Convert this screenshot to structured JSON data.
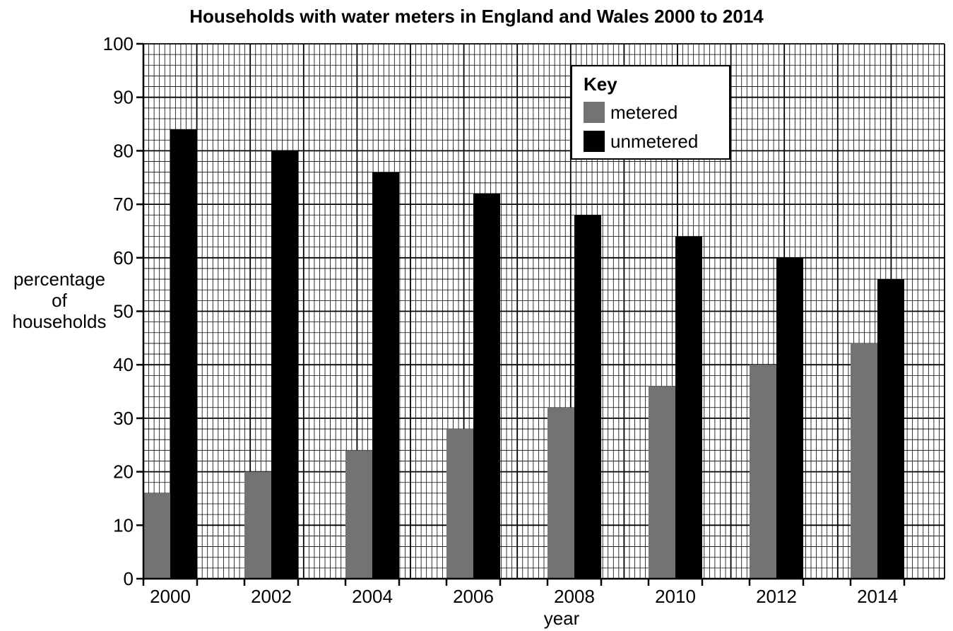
{
  "chart_data": {
    "type": "bar",
    "title": "Households with water meters in England and Wales 2000 to 2014",
    "xlabel": "year",
    "ylabel_lines": [
      "percentage",
      "of",
      "households"
    ],
    "ylim": [
      0,
      100
    ],
    "yticks": [
      "0",
      "10",
      "20",
      "30",
      "40",
      "50",
      "60",
      "70",
      "80",
      "90",
      "100"
    ],
    "categories": [
      "2000",
      "2002",
      "2004",
      "2006",
      "2008",
      "2010",
      "2012",
      "2014"
    ],
    "series": [
      {
        "name": "metered",
        "color": "#737373",
        "values": [
          16,
          20,
          24,
          28,
          32,
          36,
          40,
          44
        ]
      },
      {
        "name": "unmetered",
        "color": "#000000",
        "values": [
          84,
          80,
          76,
          72,
          68,
          64,
          60,
          56
        ]
      }
    ],
    "legend": {
      "title": "Key",
      "placement": "top-right"
    },
    "grid": true
  }
}
